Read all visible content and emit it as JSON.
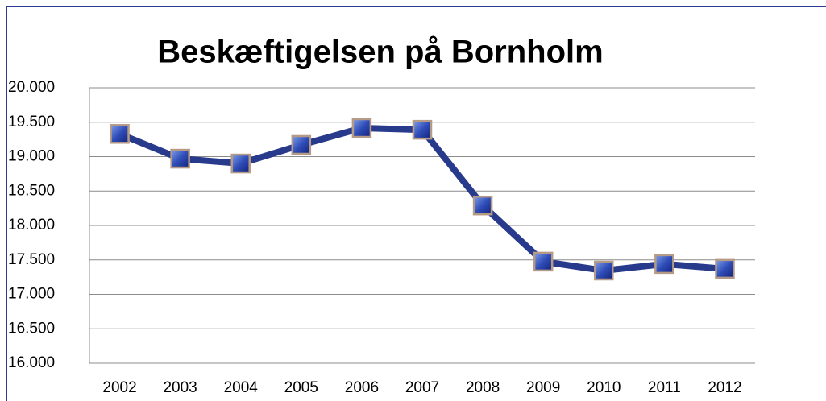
{
  "chart_data": {
    "type": "line",
    "title": "Beskæftigelsen på Bornholm",
    "categories": [
      "2002",
      "2003",
      "2004",
      "2005",
      "2006",
      "2007",
      "2008",
      "2009",
      "2010",
      "2011",
      "2012"
    ],
    "series": [
      {
        "name": "Beskæftigelsen",
        "color": "#283a8c",
        "values": [
          19330,
          18970,
          18900,
          19170,
          19415,
          19390,
          18290,
          17475,
          17345,
          17440,
          17370
        ]
      }
    ],
    "ylim": [
      16000,
      20000
    ],
    "yticks": [
      {
        "value": 16000,
        "label": "16.000"
      },
      {
        "value": 16500,
        "label": "16.500"
      },
      {
        "value": 17000,
        "label": "17.000"
      },
      {
        "value": 17500,
        "label": "17.500"
      },
      {
        "value": 18000,
        "label": "18.000"
      },
      {
        "value": 18500,
        "label": "18.500"
      },
      {
        "value": 19000,
        "label": "19.000"
      },
      {
        "value": 19500,
        "label": "19.500"
      },
      {
        "value": 20000,
        "label": "20.000"
      }
    ],
    "grid": true
  }
}
